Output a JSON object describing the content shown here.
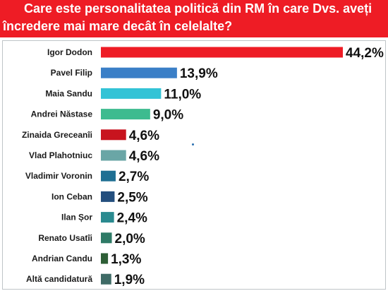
{
  "header": {
    "line1": "Care este personalitatea politică din RM în care Dvs. aveți",
    "line2": "încredere mai mare decât în celelalte?"
  },
  "colors": {
    "header_bg": "#ee1c25",
    "header_text": "#ffffff"
  },
  "chart_data": {
    "type": "bar",
    "orientation": "horizontal",
    "title": "Care este personalitatea politică din RM în care Dvs. aveți încredere mai mare decât în celelalte?",
    "categories": [
      "Igor Dodon",
      "Pavel Filip",
      "Maia Sandu",
      "Andrei Năstase",
      "Zinaida Greceanîi",
      "Vlad Plahotniuc",
      "Vladimir Voronin",
      "Ion Ceban",
      "Ilan Șor",
      "Renato Usatîi",
      "Andrian Candu",
      "Altă candidatură"
    ],
    "values": [
      44.2,
      13.9,
      11.0,
      9.0,
      4.6,
      4.6,
      2.7,
      2.5,
      2.4,
      2.0,
      1.3,
      1.9
    ],
    "value_labels": [
      "44,2%",
      "13,9%",
      "11,0%",
      "9,0%",
      "4,6%",
      "4,6%",
      "2,7%",
      "2,5%",
      "2,4%",
      "2,0%",
      "1,3%",
      "1,9%"
    ],
    "bar_colors": [
      "#ee1c25",
      "#3a7fc7",
      "#33c3d6",
      "#3dbb8f",
      "#c8141e",
      "#6aa6a6",
      "#1f6f93",
      "#244f7e",
      "#2a8a8f",
      "#2e7a66",
      "#2d5e36",
      "#3f6b66"
    ],
    "xlim": [
      0,
      44.2
    ],
    "grid": false,
    "legend": "none",
    "xlabel": "",
    "ylabel": ""
  }
}
